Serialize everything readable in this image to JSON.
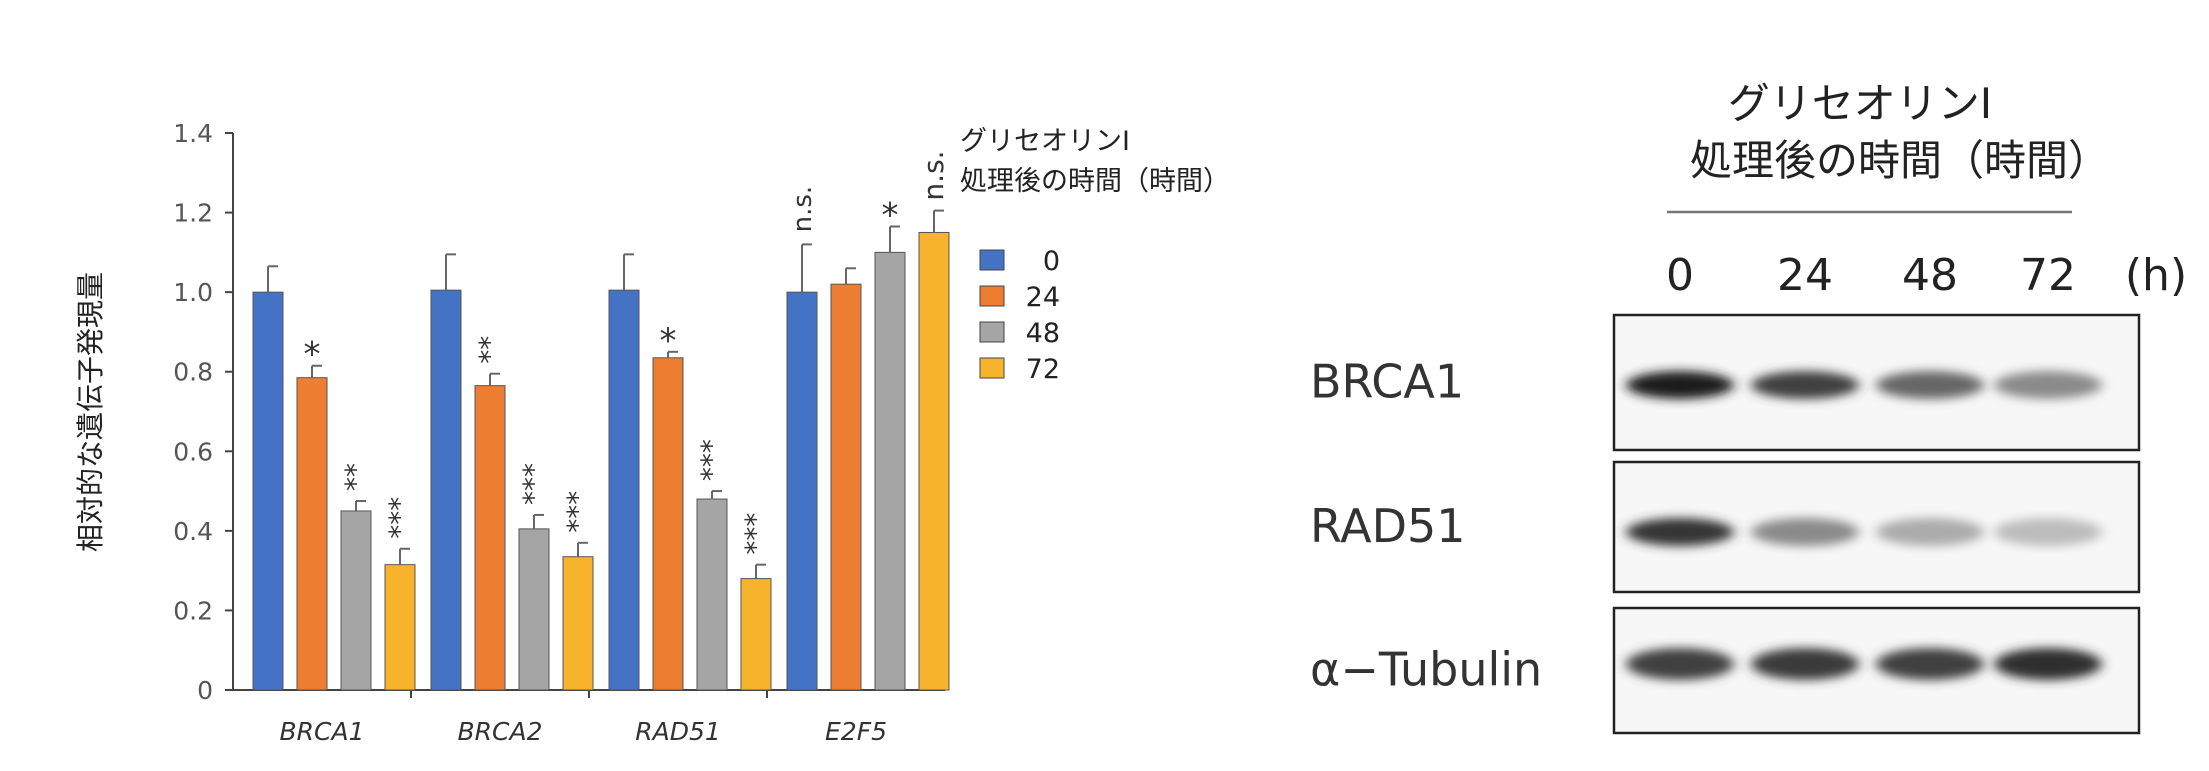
{
  "chart_data": {
    "type": "bar",
    "ylabel": "相対的な遺伝子発現量",
    "ylim": [
      0,
      1.4
    ],
    "yticks": [
      "0",
      "0.2",
      "0.4",
      "0.6",
      "0.8",
      "1.0",
      "1.2",
      "1.4"
    ],
    "categories": [
      "BRCA1",
      "BRCA2",
      "RAD51",
      "E2F5"
    ],
    "legend": {
      "title_line1": "グリセオリンI",
      "title_line2": "処理後の時間（時間）",
      "placement": "right"
    },
    "series": [
      {
        "name": "0",
        "color": "#4472C4",
        "values": [
          1.0,
          1.005,
          1.005,
          1.0
        ],
        "errors": [
          0.065,
          0.09,
          0.09,
          0.12
        ],
        "sig": [
          "",
          "",
          "",
          ""
        ]
      },
      {
        "name": "24",
        "color": "#ED7D31",
        "values": [
          0.785,
          0.765,
          0.835,
          1.02
        ],
        "errors": [
          0.03,
          0.03,
          0.015,
          0.04
        ],
        "sig": [
          "*",
          "**",
          "*",
          ""
        ]
      },
      {
        "name": "48",
        "color": "#A5A5A5",
        "values": [
          0.45,
          0.405,
          0.48,
          1.1
        ],
        "errors": [
          0.025,
          0.035,
          0.02,
          0.065
        ],
        "sig": [
          "**",
          "***",
          "***",
          "*"
        ]
      },
      {
        "name": "72",
        "color": "#F6B32B",
        "values": [
          0.315,
          0.335,
          0.28,
          1.15
        ],
        "errors": [
          0.04,
          0.035,
          0.035,
          0.055
        ],
        "sig": [
          "***",
          "***",
          "***",
          "n.s."
        ]
      }
    ],
    "e2f5_baseline_sig": "n.s."
  },
  "blot": {
    "title_line1": "グリセオリンI",
    "title_line2": "処理後の時間（時間）",
    "timepoints": [
      "0",
      "24",
      "48",
      "72"
    ],
    "unit": "(h)",
    "rows": [
      {
        "label": "BRCA1",
        "intensity": [
          0.95,
          0.8,
          0.62,
          0.45
        ]
      },
      {
        "label": "RAD51",
        "intensity": [
          0.85,
          0.45,
          0.3,
          0.22
        ]
      },
      {
        "label": "α−Tubulin",
        "intensity": [
          0.8,
          0.82,
          0.8,
          0.88
        ]
      }
    ]
  }
}
